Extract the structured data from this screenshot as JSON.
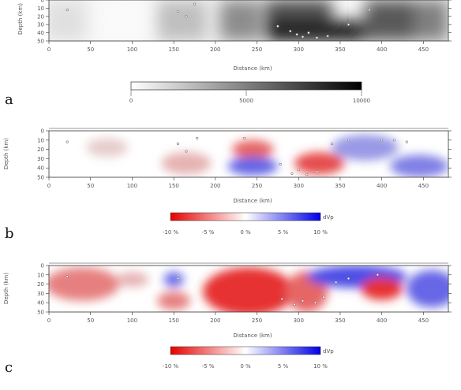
{
  "panels": [
    {
      "letter": "a",
      "xlabel": "Distance (km)",
      "ylabel": "Depth (km)",
      "colorbar": {
        "ticks": [
          "0",
          "5000",
          "10000"
        ],
        "unit": ""
      }
    },
    {
      "letter": "b",
      "xlabel": "Distance (km)",
      "ylabel": "Depth (km)",
      "colorbar": {
        "ticks": [
          "-10 %",
          "-5 %",
          "0 %",
          "5 %",
          "10 %"
        ],
        "unit": "dVp"
      }
    },
    {
      "letter": "c",
      "xlabel": "Distance (km)",
      "ylabel": "Depth (km)",
      "colorbar": {
        "ticks": [
          "-10 %",
          "-5 %",
          "0 %",
          "5 %",
          "10 %"
        ],
        "unit": "dVp"
      }
    }
  ],
  "chart_data": [
    {
      "type": "heatmap",
      "xlabel": "Distance (km)",
      "ylabel": "Depth (km)",
      "xlim": [
        0,
        480
      ],
      "ylim": [
        50,
        0
      ],
      "x_ticks": [
        0,
        50,
        100,
        150,
        200,
        250,
        300,
        350,
        400,
        450
      ],
      "y_ticks": [
        0,
        10,
        20,
        30,
        40,
        50
      ],
      "colorscale": "grayscale",
      "color_range": [
        0,
        10000
      ],
      "cells": [
        {
          "x": 20,
          "y": 25,
          "w": 50,
          "h": 50,
          "v": 1200
        },
        {
          "x": 90,
          "y": 25,
          "w": 60,
          "h": 50,
          "v": 200
        },
        {
          "x": 160,
          "y": 25,
          "w": 60,
          "h": 50,
          "v": 2500
        },
        {
          "x": 230,
          "y": 25,
          "w": 50,
          "h": 50,
          "v": 4500
        },
        {
          "x": 300,
          "y": 15,
          "w": 80,
          "h": 30,
          "v": 7000
        },
        {
          "x": 320,
          "y": 38,
          "w": 120,
          "h": 24,
          "v": 9500
        },
        {
          "x": 410,
          "y": 25,
          "w": 60,
          "h": 50,
          "v": 6500
        },
        {
          "x": 460,
          "y": 25,
          "w": 40,
          "h": 50,
          "v": 5000
        }
      ],
      "events": [
        {
          "x": 22,
          "y": 12
        },
        {
          "x": 155,
          "y": 14
        },
        {
          "x": 165,
          "y": 20
        },
        {
          "x": 175,
          "y": 5
        },
        {
          "x": 275,
          "y": 32
        },
        {
          "x": 290,
          "y": 38
        },
        {
          "x": 298,
          "y": 42
        },
        {
          "x": 305,
          "y": 45
        },
        {
          "x": 312,
          "y": 40
        },
        {
          "x": 322,
          "y": 46
        },
        {
          "x": 335,
          "y": 44
        },
        {
          "x": 360,
          "y": 30
        },
        {
          "x": 385,
          "y": 12
        }
      ]
    },
    {
      "type": "heatmap",
      "xlabel": "Distance (km)",
      "ylabel": "Depth (km)",
      "xlim": [
        0,
        480
      ],
      "ylim": [
        50,
        0
      ],
      "x_ticks": [
        0,
        50,
        100,
        150,
        200,
        250,
        300,
        350,
        400,
        450
      ],
      "y_ticks": [
        0,
        10,
        20,
        30,
        40,
        50
      ],
      "colorscale": "red-white-blue",
      "color_range": [
        -10,
        10
      ],
      "blobs": [
        {
          "x": 70,
          "y": 18,
          "rx": 25,
          "ry": 10,
          "v": -2
        },
        {
          "x": 165,
          "y": 35,
          "rx": 30,
          "ry": 12,
          "v": -3
        },
        {
          "x": 245,
          "y": 20,
          "rx": 25,
          "ry": 10,
          "v": -6
        },
        {
          "x": 245,
          "y": 38,
          "rx": 30,
          "ry": 10,
          "v": 6
        },
        {
          "x": 325,
          "y": 35,
          "rx": 30,
          "ry": 12,
          "v": -7
        },
        {
          "x": 380,
          "y": 18,
          "rx": 40,
          "ry": 14,
          "v": 4
        },
        {
          "x": 445,
          "y": 38,
          "rx": 35,
          "ry": 12,
          "v": 5
        }
      ],
      "events": [
        {
          "x": 22,
          "y": 12
        },
        {
          "x": 155,
          "y": 14
        },
        {
          "x": 165,
          "y": 22
        },
        {
          "x": 178,
          "y": 8
        },
        {
          "x": 235,
          "y": 8
        },
        {
          "x": 278,
          "y": 36
        },
        {
          "x": 292,
          "y": 46
        },
        {
          "x": 300,
          "y": 42
        },
        {
          "x": 310,
          "y": 47
        },
        {
          "x": 322,
          "y": 44
        },
        {
          "x": 340,
          "y": 14
        },
        {
          "x": 360,
          "y": 10
        },
        {
          "x": 400,
          "y": 10
        },
        {
          "x": 415,
          "y": 10
        },
        {
          "x": 430,
          "y": 12
        }
      ]
    },
    {
      "type": "heatmap",
      "xlabel": "Distance (km)",
      "ylabel": "Depth (km)",
      "xlim": [
        0,
        480
      ],
      "ylim": [
        50,
        0
      ],
      "x_ticks": [
        0,
        50,
        100,
        150,
        200,
        250,
        300,
        350,
        400,
        450
      ],
      "y_ticks": [
        0,
        10,
        20,
        30,
        40,
        50
      ],
      "colorscale": "red-white-blue",
      "color_range": [
        -10,
        10
      ],
      "blobs": [
        {
          "x": 40,
          "y": 20,
          "rx": 45,
          "ry": 18,
          "v": -5
        },
        {
          "x": 100,
          "y": 15,
          "rx": 20,
          "ry": 8,
          "v": -3
        },
        {
          "x": 150,
          "y": 15,
          "rx": 12,
          "ry": 8,
          "v": 6
        },
        {
          "x": 150,
          "y": 38,
          "rx": 20,
          "ry": 10,
          "v": -5
        },
        {
          "x": 240,
          "y": 28,
          "rx": 55,
          "ry": 26,
          "v": -8
        },
        {
          "x": 310,
          "y": 28,
          "rx": 25,
          "ry": 22,
          "v": -6
        },
        {
          "x": 370,
          "y": 12,
          "rx": 60,
          "ry": 12,
          "v": 7
        },
        {
          "x": 400,
          "y": 25,
          "rx": 25,
          "ry": 12,
          "v": -8
        },
        {
          "x": 460,
          "y": 25,
          "rx": 30,
          "ry": 20,
          "v": 6
        }
      ],
      "events": [
        {
          "x": 22,
          "y": 12
        },
        {
          "x": 155,
          "y": 14
        },
        {
          "x": 280,
          "y": 36
        },
        {
          "x": 295,
          "y": 42
        },
        {
          "x": 305,
          "y": 38
        },
        {
          "x": 320,
          "y": 40
        },
        {
          "x": 330,
          "y": 34
        },
        {
          "x": 345,
          "y": 18
        },
        {
          "x": 360,
          "y": 14
        },
        {
          "x": 395,
          "y": 10
        }
      ]
    }
  ]
}
